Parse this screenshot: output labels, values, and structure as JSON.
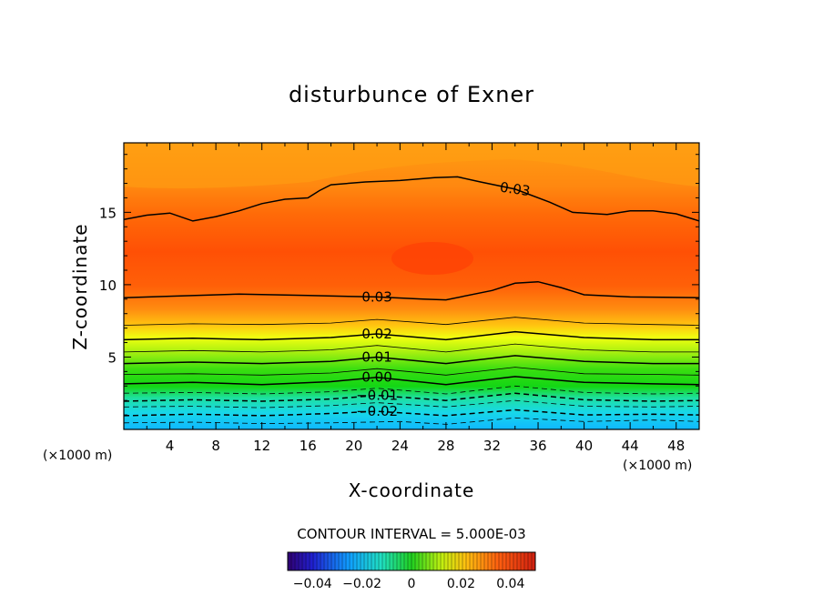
{
  "chart_data": {
    "type": "contour",
    "title": "disturbunce of Exner",
    "xlabel": "X-coordinate",
    "ylabel": "Z-coordinate",
    "x_unit_left": "(×1000 m)",
    "x_unit_right": "(×1000 m)",
    "xlim": [
      0,
      50
    ],
    "ylim": [
      0,
      19.8
    ],
    "xticks": [
      4,
      8,
      12,
      16,
      20,
      24,
      28,
      32,
      36,
      40,
      44,
      48
    ],
    "yticks": [
      5,
      10,
      15
    ],
    "contour_interval_text": "CONTOUR INTERVAL = 5.000E-03",
    "contour_interval": 0.005,
    "contour_lines": [
      {
        "level": -0.025,
        "label": "",
        "style": "dashed",
        "points": [
          [
            0,
            0.45
          ],
          [
            6,
            0.5
          ],
          [
            12,
            0.4
          ],
          [
            18,
            0.45
          ],
          [
            24,
            0.55
          ],
          [
            28,
            0.35
          ],
          [
            34,
            0.8
          ],
          [
            40,
            0.55
          ],
          [
            46,
            0.65
          ],
          [
            50,
            0.55
          ]
        ]
      },
      {
        "level": -0.02,
        "label": "-0.02",
        "style": "dashed",
        "points": [
          [
            0,
            0.95
          ],
          [
            6,
            1.05
          ],
          [
            12,
            0.95
          ],
          [
            18,
            1.1
          ],
          [
            22,
            1.25
          ],
          [
            28,
            0.95
          ],
          [
            34,
            1.35
          ],
          [
            40,
            1.0
          ],
          [
            46,
            1.05
          ],
          [
            50,
            1.0
          ]
        ]
      },
      {
        "level": -0.015,
        "label": "",
        "style": "dashed",
        "points": [
          [
            0,
            1.55
          ],
          [
            6,
            1.6
          ],
          [
            12,
            1.5
          ],
          [
            18,
            1.65
          ],
          [
            22,
            1.85
          ],
          [
            28,
            1.55
          ],
          [
            34,
            2.0
          ],
          [
            40,
            1.6
          ],
          [
            46,
            1.55
          ],
          [
            50,
            1.6
          ]
        ]
      },
      {
        "level": -0.01,
        "label": "-0.01",
        "style": "dashed",
        "points": [
          [
            0,
            1.95
          ],
          [
            6,
            2.05
          ],
          [
            12,
            1.95
          ],
          [
            18,
            2.1
          ],
          [
            22,
            2.35
          ],
          [
            28,
            2.0
          ],
          [
            34,
            2.5
          ],
          [
            40,
            2.05
          ],
          [
            46,
            1.95
          ],
          [
            50,
            2.0
          ]
        ]
      },
      {
        "level": -0.005,
        "label": "",
        "style": "dashed",
        "points": [
          [
            0,
            2.5
          ],
          [
            6,
            2.55
          ],
          [
            12,
            2.45
          ],
          [
            18,
            2.6
          ],
          [
            22,
            2.85
          ],
          [
            28,
            2.45
          ],
          [
            34,
            3.0
          ],
          [
            40,
            2.55
          ],
          [
            46,
            2.45
          ],
          [
            50,
            2.5
          ]
        ]
      },
      {
        "level": 0.0,
        "label": "0.00",
        "style": "solid",
        "points": [
          [
            0,
            3.15
          ],
          [
            6,
            3.25
          ],
          [
            12,
            3.1
          ],
          [
            18,
            3.3
          ],
          [
            22,
            3.6
          ],
          [
            28,
            3.1
          ],
          [
            34,
            3.65
          ],
          [
            40,
            3.25
          ],
          [
            46,
            3.15
          ],
          [
            50,
            3.1
          ]
        ]
      },
      {
        "level": 0.005,
        "label": "",
        "style": "solid",
        "points": [
          [
            0,
            3.8
          ],
          [
            6,
            3.85
          ],
          [
            12,
            3.75
          ],
          [
            18,
            3.9
          ],
          [
            22,
            4.2
          ],
          [
            28,
            3.75
          ],
          [
            34,
            4.3
          ],
          [
            40,
            3.85
          ],
          [
            46,
            3.8
          ],
          [
            50,
            3.75
          ]
        ]
      },
      {
        "level": 0.01,
        "label": "0.01",
        "style": "solid",
        "points": [
          [
            0,
            4.55
          ],
          [
            6,
            4.65
          ],
          [
            12,
            4.55
          ],
          [
            18,
            4.7
          ],
          [
            22,
            5.0
          ],
          [
            28,
            4.55
          ],
          [
            34,
            5.1
          ],
          [
            40,
            4.7
          ],
          [
            46,
            4.55
          ],
          [
            50,
            4.55
          ]
        ]
      },
      {
        "level": 0.015,
        "label": "",
        "style": "solid",
        "points": [
          [
            0,
            5.35
          ],
          [
            6,
            5.45
          ],
          [
            12,
            5.35
          ],
          [
            18,
            5.5
          ],
          [
            22,
            5.8
          ],
          [
            28,
            5.35
          ],
          [
            34,
            5.9
          ],
          [
            40,
            5.5
          ],
          [
            46,
            5.35
          ],
          [
            50,
            5.35
          ]
        ]
      },
      {
        "level": 0.02,
        "label": "0.02",
        "style": "solid",
        "points": [
          [
            0,
            6.2
          ],
          [
            6,
            6.3
          ],
          [
            12,
            6.2
          ],
          [
            18,
            6.35
          ],
          [
            22,
            6.6
          ],
          [
            28,
            6.2
          ],
          [
            34,
            6.75
          ],
          [
            40,
            6.35
          ],
          [
            46,
            6.2
          ],
          [
            50,
            6.2
          ]
        ]
      },
      {
        "level": 0.025,
        "label": "",
        "style": "solid",
        "points": [
          [
            0,
            7.2
          ],
          [
            6,
            7.3
          ],
          [
            12,
            7.25
          ],
          [
            18,
            7.35
          ],
          [
            22,
            7.6
          ],
          [
            28,
            7.25
          ],
          [
            34,
            7.75
          ],
          [
            40,
            7.35
          ],
          [
            46,
            7.25
          ],
          [
            50,
            7.2
          ]
        ]
      },
      {
        "level": 0.03,
        "label": "0.03",
        "style": "solid",
        "points": [
          [
            0,
            9.1
          ],
          [
            4,
            9.2
          ],
          [
            10,
            9.35
          ],
          [
            16,
            9.25
          ],
          [
            22,
            9.15
          ],
          [
            26,
            9.0
          ],
          [
            28,
            8.95
          ],
          [
            32,
            9.6
          ],
          [
            34,
            10.1
          ],
          [
            36,
            10.2
          ],
          [
            38,
            9.8
          ],
          [
            40,
            9.3
          ],
          [
            44,
            9.15
          ],
          [
            50,
            9.1
          ]
        ]
      },
      {
        "level": 0.03,
        "label": "0.03",
        "style": "solid",
        "points": [
          [
            0,
            14.5
          ],
          [
            2,
            14.8
          ],
          [
            4,
            14.95
          ],
          [
            6,
            14.4
          ],
          [
            8,
            14.7
          ],
          [
            10,
            15.1
          ],
          [
            12,
            15.6
          ],
          [
            14,
            15.9
          ],
          [
            16,
            16.0
          ],
          [
            17,
            16.5
          ],
          [
            18,
            16.9
          ],
          [
            21,
            17.1
          ],
          [
            24,
            17.2
          ],
          [
            27,
            17.4
          ],
          [
            29,
            17.45
          ],
          [
            31,
            17.1
          ],
          [
            34,
            16.6
          ],
          [
            37,
            15.7
          ],
          [
            39,
            15.0
          ],
          [
            42,
            14.85
          ],
          [
            44,
            15.1
          ],
          [
            46,
            15.1
          ],
          [
            48,
            14.9
          ],
          [
            50,
            14.4
          ]
        ]
      }
    ],
    "colorbar": {
      "min": -0.05,
      "max": 0.05,
      "tick_values": [
        -0.04,
        -0.02,
        0,
        0.02,
        0.04
      ],
      "tick_labels": [
        "-0.04",
        "-0.02",
        "0",
        "0.02",
        "0.04"
      ]
    },
    "colors": {
      "cyan": "#10c8ff",
      "green": "#1ed21e",
      "yellow": "#f0ff10",
      "orange": "#ff9b0a",
      "red_orange": "#ff5a05"
    }
  }
}
